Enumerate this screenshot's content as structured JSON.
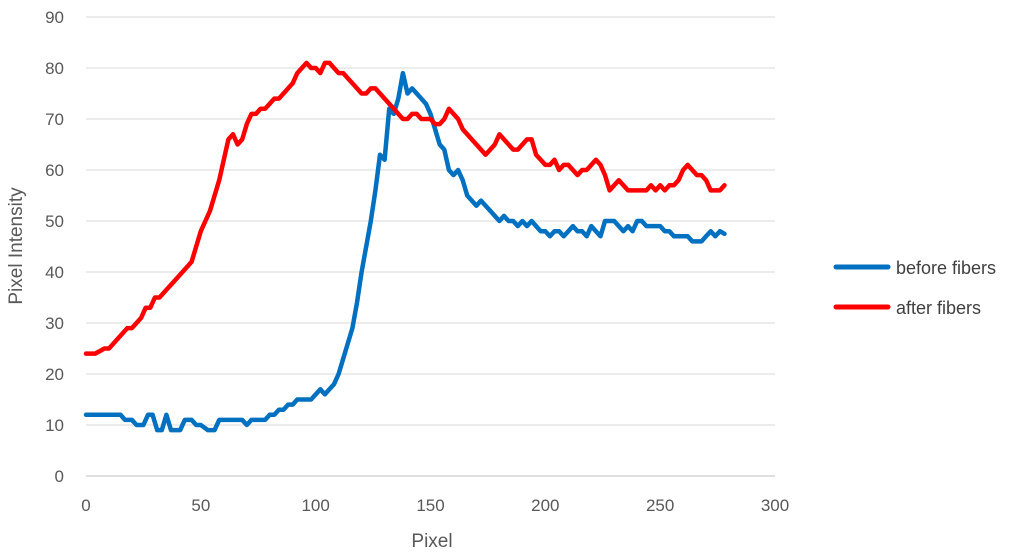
{
  "chart_data": {
    "type": "line",
    "title": "",
    "xlabel": "Pixel",
    "ylabel": "Pixel Intensity",
    "xlim": [
      0,
      300
    ],
    "ylim": [
      0,
      90
    ],
    "x_ticks": [
      0,
      50,
      100,
      150,
      200,
      250,
      300
    ],
    "y_ticks": [
      0,
      10,
      20,
      30,
      40,
      50,
      60,
      70,
      80,
      90
    ],
    "grid": "horizontal",
    "legend_position": "right",
    "series": [
      {
        "name": "before fibers",
        "color": "#0070C0",
        "points": [
          [
            0,
            12
          ],
          [
            5,
            12
          ],
          [
            10,
            12
          ],
          [
            15,
            12
          ],
          [
            17,
            11
          ],
          [
            20,
            11
          ],
          [
            22,
            10
          ],
          [
            25,
            10
          ],
          [
            27,
            12
          ],
          [
            29,
            12
          ],
          [
            31,
            9
          ],
          [
            33,
            9
          ],
          [
            35,
            12
          ],
          [
            37,
            9
          ],
          [
            39,
            9
          ],
          [
            41,
            9
          ],
          [
            43,
            11
          ],
          [
            46,
            11
          ],
          [
            48,
            10
          ],
          [
            50,
            10
          ],
          [
            53,
            9
          ],
          [
            56,
            9
          ],
          [
            58,
            11
          ],
          [
            62,
            11
          ],
          [
            66,
            11
          ],
          [
            68,
            11
          ],
          [
            70,
            10
          ],
          [
            72,
            11
          ],
          [
            75,
            11
          ],
          [
            78,
            11
          ],
          [
            80,
            12
          ],
          [
            82,
            12
          ],
          [
            84,
            13
          ],
          [
            86,
            13
          ],
          [
            88,
            14
          ],
          [
            90,
            14
          ],
          [
            92,
            15
          ],
          [
            94,
            15
          ],
          [
            96,
            15
          ],
          [
            98,
            15
          ],
          [
            100,
            16
          ],
          [
            102,
            17
          ],
          [
            104,
            16
          ],
          [
            106,
            17
          ],
          [
            108,
            18
          ],
          [
            110,
            20
          ],
          [
            112,
            23
          ],
          [
            114,
            26
          ],
          [
            116,
            29
          ],
          [
            118,
            34
          ],
          [
            120,
            40
          ],
          [
            122,
            45
          ],
          [
            124,
            50
          ],
          [
            126,
            56
          ],
          [
            128,
            63
          ],
          [
            130,
            62
          ],
          [
            132,
            72
          ],
          [
            134,
            71
          ],
          [
            136,
            74
          ],
          [
            138,
            79
          ],
          [
            140,
            75
          ],
          [
            142,
            76
          ],
          [
            144,
            75
          ],
          [
            146,
            74
          ],
          [
            148,
            73
          ],
          [
            150,
            71
          ],
          [
            152,
            68
          ],
          [
            154,
            65
          ],
          [
            156,
            64
          ],
          [
            158,
            60
          ],
          [
            160,
            59
          ],
          [
            162,
            60
          ],
          [
            164,
            58
          ],
          [
            166,
            55
          ],
          [
            168,
            54
          ],
          [
            170,
            53
          ],
          [
            172,
            54
          ],
          [
            174,
            53
          ],
          [
            176,
            52
          ],
          [
            178,
            51
          ],
          [
            180,
            50
          ],
          [
            182,
            51
          ],
          [
            184,
            50
          ],
          [
            186,
            50
          ],
          [
            188,
            49
          ],
          [
            190,
            50
          ],
          [
            192,
            49
          ],
          [
            194,
            50
          ],
          [
            196,
            49
          ],
          [
            198,
            48
          ],
          [
            200,
            48
          ],
          [
            202,
            47
          ],
          [
            204,
            48
          ],
          [
            206,
            48
          ],
          [
            208,
            47
          ],
          [
            210,
            48
          ],
          [
            212,
            49
          ],
          [
            214,
            48
          ],
          [
            216,
            48
          ],
          [
            218,
            47
          ],
          [
            220,
            49
          ],
          [
            222,
            48
          ],
          [
            224,
            47
          ],
          [
            226,
            50
          ],
          [
            228,
            50
          ],
          [
            230,
            50
          ],
          [
            232,
            49
          ],
          [
            234,
            48
          ],
          [
            236,
            49
          ],
          [
            238,
            48
          ],
          [
            240,
            50
          ],
          [
            242,
            50
          ],
          [
            244,
            49
          ],
          [
            246,
            49
          ],
          [
            248,
            49
          ],
          [
            250,
            49
          ],
          [
            252,
            48
          ],
          [
            254,
            48
          ],
          [
            256,
            47
          ],
          [
            258,
            47
          ],
          [
            260,
            47
          ],
          [
            262,
            47
          ],
          [
            264,
            46
          ],
          [
            266,
            46
          ],
          [
            268,
            46
          ],
          [
            270,
            47
          ],
          [
            272,
            48
          ],
          [
            274,
            47
          ],
          [
            276,
            48
          ],
          [
            278,
            47.5
          ]
        ]
      },
      {
        "name": "after fibers",
        "color": "#FF0000",
        "points": [
          [
            0,
            24
          ],
          [
            2,
            24
          ],
          [
            4,
            24
          ],
          [
            6,
            24.5
          ],
          [
            8,
            25
          ],
          [
            10,
            25
          ],
          [
            12,
            26
          ],
          [
            14,
            27
          ],
          [
            16,
            28
          ],
          [
            18,
            29
          ],
          [
            20,
            29
          ],
          [
            22,
            30
          ],
          [
            24,
            31
          ],
          [
            26,
            33
          ],
          [
            28,
            33
          ],
          [
            30,
            35
          ],
          [
            32,
            35
          ],
          [
            34,
            36
          ],
          [
            36,
            37
          ],
          [
            38,
            38
          ],
          [
            40,
            39
          ],
          [
            42,
            40
          ],
          [
            44,
            41
          ],
          [
            46,
            42
          ],
          [
            48,
            45
          ],
          [
            50,
            48
          ],
          [
            52,
            50
          ],
          [
            54,
            52
          ],
          [
            56,
            55
          ],
          [
            58,
            58
          ],
          [
            60,
            62
          ],
          [
            62,
            66
          ],
          [
            64,
            67
          ],
          [
            66,
            65
          ],
          [
            68,
            66
          ],
          [
            70,
            69
          ],
          [
            72,
            71
          ],
          [
            74,
            71
          ],
          [
            76,
            72
          ],
          [
            78,
            72
          ],
          [
            80,
            73
          ],
          [
            82,
            74
          ],
          [
            84,
            74
          ],
          [
            86,
            75
          ],
          [
            88,
            76
          ],
          [
            90,
            77
          ],
          [
            92,
            79
          ],
          [
            94,
            80
          ],
          [
            96,
            81
          ],
          [
            98,
            80
          ],
          [
            100,
            80
          ],
          [
            102,
            79
          ],
          [
            104,
            81
          ],
          [
            106,
            81
          ],
          [
            108,
            80
          ],
          [
            110,
            79
          ],
          [
            112,
            79
          ],
          [
            114,
            78
          ],
          [
            116,
            77
          ],
          [
            118,
            76
          ],
          [
            120,
            75
          ],
          [
            122,
            75
          ],
          [
            124,
            76
          ],
          [
            126,
            76
          ],
          [
            128,
            75
          ],
          [
            130,
            74
          ],
          [
            132,
            73
          ],
          [
            134,
            72
          ],
          [
            136,
            71
          ],
          [
            138,
            70
          ],
          [
            140,
            70
          ],
          [
            142,
            71
          ],
          [
            144,
            71
          ],
          [
            146,
            70
          ],
          [
            148,
            70
          ],
          [
            150,
            70
          ],
          [
            152,
            69
          ],
          [
            154,
            69
          ],
          [
            156,
            70
          ],
          [
            158,
            72
          ],
          [
            160,
            71
          ],
          [
            162,
            70
          ],
          [
            164,
            68
          ],
          [
            166,
            67
          ],
          [
            168,
            66
          ],
          [
            170,
            65
          ],
          [
            172,
            64
          ],
          [
            174,
            63
          ],
          [
            176,
            64
          ],
          [
            178,
            65
          ],
          [
            180,
            67
          ],
          [
            182,
            66
          ],
          [
            184,
            65
          ],
          [
            186,
            64
          ],
          [
            188,
            64
          ],
          [
            190,
            65
          ],
          [
            192,
            66
          ],
          [
            194,
            66
          ],
          [
            196,
            63
          ],
          [
            198,
            62
          ],
          [
            200,
            61
          ],
          [
            202,
            61
          ],
          [
            204,
            62
          ],
          [
            206,
            60
          ],
          [
            208,
            61
          ],
          [
            210,
            61
          ],
          [
            212,
            60
          ],
          [
            214,
            59
          ],
          [
            216,
            60
          ],
          [
            218,
            60
          ],
          [
            220,
            61
          ],
          [
            222,
            62
          ],
          [
            224,
            61
          ],
          [
            226,
            59
          ],
          [
            228,
            56
          ],
          [
            230,
            57
          ],
          [
            232,
            58
          ],
          [
            234,
            57
          ],
          [
            236,
            56
          ],
          [
            238,
            56
          ],
          [
            240,
            56
          ],
          [
            242,
            56
          ],
          [
            244,
            56
          ],
          [
            246,
            57
          ],
          [
            248,
            56
          ],
          [
            250,
            57
          ],
          [
            252,
            56
          ],
          [
            254,
            57
          ],
          [
            256,
            57
          ],
          [
            258,
            58
          ],
          [
            260,
            60
          ],
          [
            262,
            61
          ],
          [
            264,
            60
          ],
          [
            266,
            59
          ],
          [
            268,
            59
          ],
          [
            270,
            58
          ],
          [
            272,
            56
          ],
          [
            274,
            56
          ],
          [
            276,
            56
          ],
          [
            278,
            57
          ]
        ]
      }
    ]
  }
}
